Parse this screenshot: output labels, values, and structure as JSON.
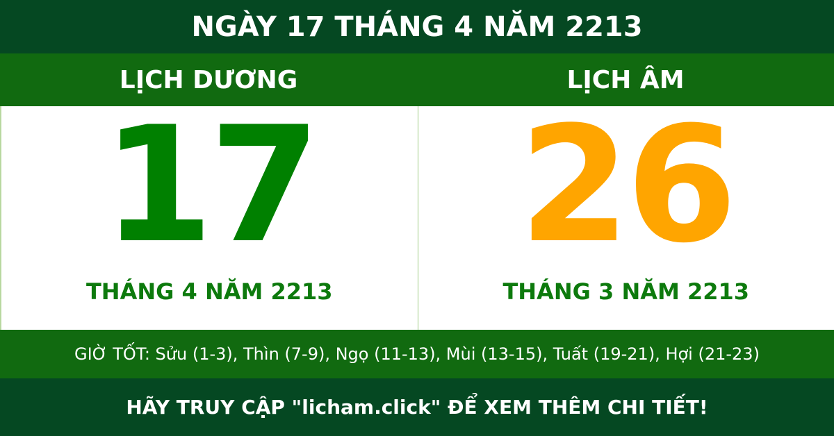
{
  "header": {
    "title": "NGÀY 17 THÁNG 4 NĂM 2213"
  },
  "solar": {
    "label": "LỊCH DƯƠNG",
    "day": "17",
    "month_year": "THÁNG 4 NĂM 2213",
    "color": "#008000"
  },
  "lunar": {
    "label": "LỊCH ÂM",
    "day": "26",
    "month_year": "THÁNG 3 NĂM 2213",
    "color": "#FFA500"
  },
  "good_hours": "GIỜ TỐT: Sửu (1-3), Thìn (7-9), Ngọ (11-13), Mùi (13-15), Tuất (19-21), Hợi (21-23)",
  "footer": "HÃY TRUY CẬP \"licham.click\" ĐỂ XEM THÊM CHI TIẾT!"
}
